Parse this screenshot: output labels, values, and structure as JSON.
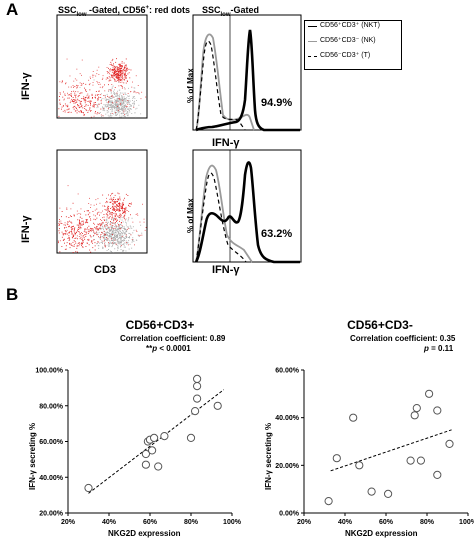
{
  "panel_labels": {
    "a": "A",
    "b": "B"
  },
  "panel_a": {
    "dot_header_prefix": "SSC",
    "dot_header_sub": "low",
    "dot_header_mid": " -Gated,  CD56",
    "dot_header_sup": "+",
    "dot_header_suffix": ": red dots",
    "hist_header_prefix": "SSC",
    "hist_header_sub": "low",
    "hist_header_suffix": "-Gated",
    "dot_ylabel": "IFN-γ",
    "dot_xlabel": "CD3",
    "hist_ylabel": "%  of Max",
    "hist_xlabel": "IFN-γ",
    "legend": [
      {
        "label": "CD56⁺CD3⁺ (NKT)",
        "style": "solid-black"
      },
      {
        "label": "CD56⁺CD3⁻ (NK)",
        "style": "solid-gray"
      },
      {
        "label": "CD56⁻CD3⁺ (T)",
        "style": "dashed-black"
      }
    ],
    "rows": [
      {
        "percent": "94.9%"
      },
      {
        "percent": "63.2%"
      }
    ]
  },
  "chart_data": [
    {
      "type": "scatter",
      "title": "CD56+CD3+",
      "subtitle": "Correlation coefficient: 0.89",
      "pvalue_prefix": "**",
      "pvalue_p": "p",
      "pvalue_rest": " < 0.0001",
      "xlabel": "NKG2D expression",
      "ylabel": "IFN-γ secreting %",
      "xlim": [
        0.2,
        1.0
      ],
      "ylim": [
        0.2,
        1.0
      ],
      "xticks": [
        "20%",
        "40%",
        "60%",
        "80%",
        "100%"
      ],
      "yticks": [
        "20.00%",
        "40.00%",
        "60.00%",
        "80.00%",
        "100.00%"
      ],
      "trendline": [
        [
          0.3,
          0.31
        ],
        [
          0.96,
          0.89
        ]
      ],
      "points": [
        [
          0.3,
          0.34
        ],
        [
          0.58,
          0.47
        ],
        [
          0.58,
          0.53
        ],
        [
          0.59,
          0.6
        ],
        [
          0.6,
          0.61
        ],
        [
          0.61,
          0.55
        ],
        [
          0.62,
          0.62
        ],
        [
          0.64,
          0.46
        ],
        [
          0.67,
          0.63
        ],
        [
          0.8,
          0.62
        ],
        [
          0.82,
          0.77
        ],
        [
          0.83,
          0.84
        ],
        [
          0.83,
          0.91
        ],
        [
          0.83,
          0.95
        ],
        [
          0.93,
          0.8
        ]
      ]
    },
    {
      "type": "scatter",
      "title": "CD56+CD3-",
      "subtitle": "Correlation coefficient: 0.35",
      "pvalue_prefix": "",
      "pvalue_p": "p",
      "pvalue_rest": " = 0.11",
      "xlabel": "NKG2D expression",
      "ylabel": "IFN-γ secreting %",
      "xlim": [
        0.2,
        1.0
      ],
      "ylim": [
        0.0,
        0.6
      ],
      "xticks": [
        "20%",
        "40%",
        "60%",
        "80%",
        "100%"
      ],
      "yticks": [
        "0.00%",
        "20.00%",
        "40.00%",
        "60.00%"
      ],
      "trendline": [
        [
          0.33,
          0.177
        ],
        [
          0.92,
          0.349
        ]
      ],
      "points": [
        [
          0.32,
          0.05
        ],
        [
          0.36,
          0.23
        ],
        [
          0.44,
          0.4
        ],
        [
          0.47,
          0.2
        ],
        [
          0.53,
          0.09
        ],
        [
          0.61,
          0.08
        ],
        [
          0.72,
          0.22
        ],
        [
          0.74,
          0.41
        ],
        [
          0.75,
          0.44
        ],
        [
          0.77,
          0.22
        ],
        [
          0.81,
          0.5
        ],
        [
          0.85,
          0.43
        ],
        [
          0.85,
          0.16
        ],
        [
          0.91,
          0.29
        ]
      ]
    }
  ]
}
